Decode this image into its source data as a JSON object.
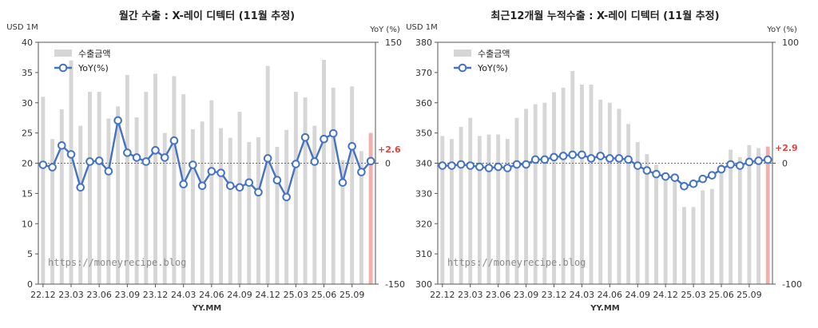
{
  "watermark": "https://moneyrecipe.blog",
  "chart_data": [
    {
      "type": "bar",
      "title": "월간 수출 : X-레이 디텍터 (11월 추정)",
      "ylabel": "USD 1M",
      "y2label": "YoY (%)",
      "xlabel": "YY.MM",
      "ylim": [
        0,
        40
      ],
      "yticks": [
        0,
        5,
        10,
        15,
        20,
        25,
        30,
        35,
        40
      ],
      "y2lim": [
        -150,
        150
      ],
      "y2ticks": [
        -150,
        0,
        150
      ],
      "x_tick_labels": [
        "22.12",
        "23.03",
        "23.06",
        "23.09",
        "23.12",
        "24.03",
        "24.06",
        "24.09",
        "24.12",
        "25.03",
        "25.06",
        "25.09"
      ],
      "categories": [
        "22.12",
        "23.01",
        "23.02",
        "23.03",
        "23.04",
        "23.05",
        "23.06",
        "23.07",
        "23.08",
        "23.09",
        "23.10",
        "23.11",
        "23.12",
        "24.01",
        "24.02",
        "24.03",
        "24.04",
        "24.05",
        "24.06",
        "24.07",
        "24.08",
        "24.09",
        "24.10",
        "24.11",
        "24.12",
        "25.01",
        "25.02",
        "25.03",
        "25.04",
        "25.05",
        "25.06",
        "25.07",
        "25.08",
        "25.09",
        "25.10",
        "25.11"
      ],
      "series": [
        {
          "name": "수출금액",
          "kind": "bar",
          "axis": "left",
          "color": "#d6d6d6",
          "values": [
            31.0,
            24.0,
            28.9,
            37.0,
            26.2,
            31.8,
            31.8,
            27.4,
            29.4,
            34.6,
            27.6,
            31.8,
            34.8,
            25.0,
            34.4,
            31.4,
            25.6,
            26.9,
            30.4,
            25.8,
            24.2,
            28.5,
            23.5,
            24.3,
            36.1,
            22.7,
            25.5,
            31.8,
            30.9,
            26.2,
            37.1,
            32.5,
            20.5,
            32.7,
            22.0,
            25.0
          ]
        },
        {
          "name": "YoY(%)",
          "kind": "line",
          "axis": "right",
          "color": "#4472c4",
          "values": [
            -2,
            -5,
            22,
            11,
            -30,
            2,
            3,
            -10,
            53,
            13,
            7,
            2,
            16,
            7,
            28,
            -26,
            -2,
            -28,
            -10,
            -12,
            -28,
            -30,
            -24,
            -36,
            6,
            -21,
            -42,
            -1,
            32,
            2,
            30,
            37,
            -24,
            21,
            -11,
            2.6
          ]
        }
      ],
      "highlight": {
        "category": "25.11",
        "color": "#f2b0ac"
      },
      "annotation": "+2.6",
      "legend": "top-left"
    },
    {
      "type": "bar",
      "title": "최근12개월 누적수출 : X-레이 디텍터 (11월 추정)",
      "ylabel": "USD 1M",
      "y2label": "YoY (%)",
      "xlabel": "YY.MM",
      "ylim": [
        300,
        380
      ],
      "yticks": [
        300,
        310,
        320,
        330,
        340,
        350,
        360,
        370,
        380
      ],
      "y2lim": [
        -100,
        100
      ],
      "y2ticks": [
        -100,
        0,
        100
      ],
      "x_tick_labels": [
        "22.12",
        "23.03",
        "23.06",
        "23.09",
        "23.12",
        "24.03",
        "24.06",
        "24.09",
        "24.12",
        "25.03",
        "25.06",
        "25.09"
      ],
      "categories": [
        "22.12",
        "23.01",
        "23.02",
        "23.03",
        "23.04",
        "23.05",
        "23.06",
        "23.07",
        "23.08",
        "23.09",
        "23.10",
        "23.11",
        "23.12",
        "24.01",
        "24.02",
        "24.03",
        "24.04",
        "24.05",
        "24.06",
        "24.07",
        "24.08",
        "24.09",
        "24.10",
        "24.11",
        "24.12",
        "25.01",
        "25.02",
        "25.03",
        "25.04",
        "25.05",
        "25.06",
        "25.07",
        "25.08",
        "25.09",
        "25.10",
        "25.11"
      ],
      "series": [
        {
          "name": "수출금액",
          "kind": "bar",
          "axis": "left",
          "color": "#d6d6d6",
          "values": [
            349,
            348,
            352,
            355,
            349,
            349.5,
            349.5,
            348,
            355,
            358,
            359.5,
            360,
            363.5,
            365,
            370.5,
            366,
            366,
            361,
            360,
            358,
            353,
            347,
            343,
            339.5,
            336.5,
            334,
            325.5,
            325.5,
            331,
            331.5,
            340,
            344.5,
            342,
            346,
            345,
            345.5
          ]
        },
        {
          "name": "YoY(%)",
          "kind": "line",
          "axis": "right",
          "color": "#4472c4",
          "values": [
            -2,
            -2,
            -1,
            -2,
            -3,
            -4,
            -3,
            -4,
            -1,
            -1,
            3,
            3,
            5,
            6,
            7,
            7,
            4,
            6,
            4,
            4,
            3,
            -2,
            -6,
            -9,
            -11,
            -12,
            -19,
            -17,
            -13,
            -10,
            -5,
            -1,
            -2,
            1,
            2,
            2.9
          ]
        }
      ],
      "highlight": {
        "category": "25.11",
        "color": "#f2b0ac"
      },
      "annotation": "+2.9",
      "legend": "top-left"
    }
  ]
}
